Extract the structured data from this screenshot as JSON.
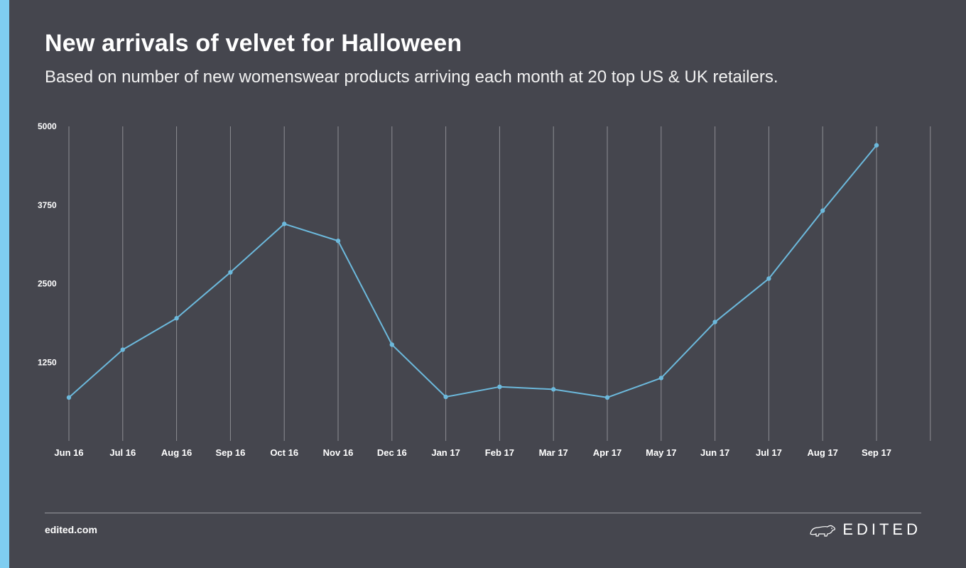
{
  "header": {
    "title": "New arrivals of velvet for Halloween",
    "subtitle": "Based on number of new womenswear products arriving each month at 20 top US & UK retailers."
  },
  "footer": {
    "url": "edited.com",
    "brand": "EDITED",
    "brand_icon": "polar-bear-icon"
  },
  "colors": {
    "accent": "#7fcdf0",
    "line": "#6cb9dc",
    "background": "#45464e",
    "grid": "#8d8e94"
  },
  "chart_data": {
    "type": "line",
    "categories": [
      "Jun 16",
      "Jul 16",
      "Aug 16",
      "Sep 16",
      "Oct 16",
      "Nov 16",
      "Dec 16",
      "Jan 17",
      "Feb 17",
      "Mar 17",
      "Apr 17",
      "May 17",
      "Jun 17",
      "Jul 17",
      "Aug 17",
      "Sep 17"
    ],
    "series": [
      {
        "values": [
          690,
          1450,
          1950,
          2680,
          3450,
          3180,
          1530,
          700,
          860,
          820,
          690,
          1000,
          1890,
          2580,
          3660,
          4700
        ]
      }
    ],
    "yticks": [
      0,
      1250,
      2500,
      3750,
      5000
    ],
    "ytick_labels": [
      "",
      "1250",
      "2500",
      "3750",
      "5000"
    ],
    "ylim": [
      0,
      5000
    ],
    "grid": "vertical",
    "legend": "none"
  }
}
